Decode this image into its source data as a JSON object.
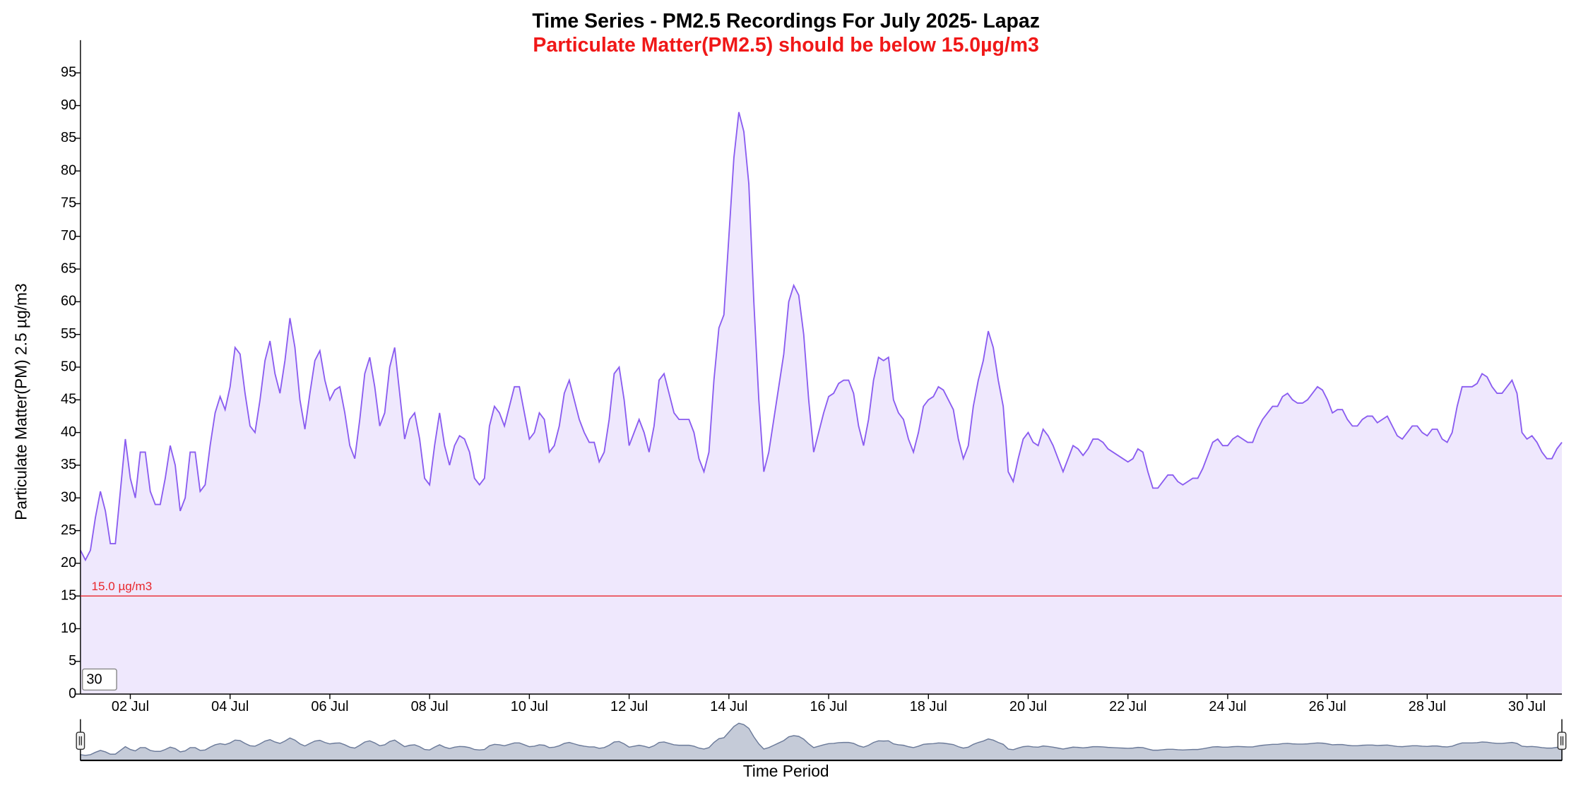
{
  "chart_data": {
    "type": "area",
    "title": "Time Series - PM2.5 Recordings For July 2025- Lapaz",
    "subtitle": "Particulate Matter(PM2.5) should be below 15.0µg/m3",
    "y_label": "Particulate Matter(PM) 2.5 µg/m3",
    "x_label": "Time Period",
    "range_input": "30",
    "color": "#8a5cf0",
    "fill_color": "#efe8fd",
    "threshold": {
      "value": 15,
      "label": "15.0 µg/m3",
      "color": "#e8262b"
    },
    "xlim": [
      1,
      30.7
    ],
    "ylim": [
      0,
      100
    ],
    "xticks": [
      {
        "value": 2,
        "label": "02 Jul"
      },
      {
        "value": 4,
        "label": "04 Jul"
      },
      {
        "value": 6,
        "label": "06 Jul"
      },
      {
        "value": 8,
        "label": "08 Jul"
      },
      {
        "value": 10,
        "label": "10 Jul"
      },
      {
        "value": 12,
        "label": "12 Jul"
      },
      {
        "value": 14,
        "label": "14 Jul"
      },
      {
        "value": 16,
        "label": "16 Jul"
      },
      {
        "value": 18,
        "label": "18 Jul"
      },
      {
        "value": 20,
        "label": "20 Jul"
      },
      {
        "value": 22,
        "label": "22 Jul"
      },
      {
        "value": 24,
        "label": "24 Jul"
      },
      {
        "value": 26,
        "label": "26 Jul"
      },
      {
        "value": 28,
        "label": "28 Jul"
      },
      {
        "value": 30,
        "label": "30 Jul"
      }
    ],
    "yticks": [
      0,
      5,
      10,
      15,
      20,
      25,
      30,
      35,
      40,
      45,
      50,
      55,
      60,
      65,
      70,
      75,
      80,
      85,
      90,
      95
    ],
    "x": [
      1,
      1.1,
      1.2,
      1.3,
      1.4,
      1.5,
      1.6,
      1.7,
      1.8,
      1.9,
      2,
      2.1,
      2.2,
      2.3,
      2.4,
      2.5,
      2.6,
      2.7,
      2.8,
      2.9,
      3,
      3.1,
      3.2,
      3.3,
      3.4,
      3.5,
      3.6,
      3.7,
      3.8,
      3.9,
      4,
      4.1,
      4.2,
      4.3,
      4.4,
      4.5,
      4.6,
      4.7,
      4.8,
      4.9,
      5,
      5.1,
      5.2,
      5.3,
      5.4,
      5.5,
      5.6,
      5.7,
      5.8,
      5.9,
      6,
      6.1,
      6.2,
      6.3,
      6.4,
      6.5,
      6.6,
      6.7,
      6.8,
      6.9,
      7,
      7.1,
      7.2,
      7.3,
      7.4,
      7.5,
      7.6,
      7.7,
      7.8,
      7.9,
      8,
      8.1,
      8.2,
      8.3,
      8.4,
      8.5,
      8.6,
      8.7,
      8.8,
      8.9,
      9,
      9.1,
      9.2,
      9.3,
      9.4,
      9.5,
      9.6,
      9.7,
      9.8,
      9.9,
      10,
      10.1,
      10.2,
      10.3,
      10.4,
      10.5,
      10.6,
      10.7,
      10.8,
      10.9,
      11,
      11.1,
      11.2,
      11.3,
      11.4,
      11.5,
      11.6,
      11.7,
      11.8,
      11.9,
      12,
      12.1,
      12.2,
      12.3,
      12.4,
      12.5,
      12.6,
      12.7,
      12.8,
      12.9,
      13,
      13.1,
      13.2,
      13.3,
      13.4,
      13.5,
      13.6,
      13.7,
      13.8,
      13.9,
      14,
      14.1,
      14.2,
      14.3,
      14.4,
      14.5,
      14.6,
      14.7,
      14.8,
      14.9,
      15,
      15.1,
      15.2,
      15.3,
      15.4,
      15.5,
      15.6,
      15.7,
      15.8,
      15.9,
      16,
      16.1,
      16.2,
      16.3,
      16.4,
      16.5,
      16.6,
      16.7,
      16.8,
      16.9,
      17,
      17.1,
      17.2,
      17.3,
      17.4,
      17.5,
      17.6,
      17.7,
      17.8,
      17.9,
      18,
      18.1,
      18.2,
      18.3,
      18.4,
      18.5,
      18.6,
      18.7,
      18.8,
      18.9,
      19,
      19.1,
      19.2,
      19.3,
      19.4,
      19.5,
      19.6,
      19.7,
      19.8,
      19.9,
      20,
      20.1,
      20.2,
      20.3,
      20.4,
      20.5,
      20.6,
      20.7,
      20.8,
      20.9,
      21,
      21.1,
      21.2,
      21.3,
      21.4,
      21.5,
      21.6,
      21.7,
      21.8,
      21.9,
      22,
      22.1,
      22.2,
      22.3,
      22.4,
      22.5,
      22.6,
      22.7,
      22.8,
      22.9,
      23,
      23.1,
      23.2,
      23.3,
      23.4,
      23.5,
      23.6,
      23.7,
      23.8,
      23.9,
      24,
      24.1,
      24.2,
      24.3,
      24.4,
      24.5,
      24.6,
      24.7,
      24.8,
      24.9,
      25,
      25.1,
      25.2,
      25.3,
      25.4,
      25.5,
      25.6,
      25.7,
      25.8,
      25.9,
      26,
      26.1,
      26.2,
      26.3,
      26.4,
      26.5,
      26.6,
      26.7,
      26.8,
      26.9,
      27,
      27.1,
      27.2,
      27.3,
      27.4,
      27.5,
      27.6,
      27.7,
      27.8,
      27.9,
      28,
      28.1,
      28.2,
      28.3,
      28.4,
      28.5,
      28.6,
      28.7,
      28.8,
      28.9,
      29,
      29.1,
      29.2,
      29.3,
      29.4,
      29.5,
      29.6,
      29.7,
      29.8,
      29.9,
      30,
      30.1,
      30.2,
      30.3,
      30.4,
      30.5,
      30.6,
      30.7
    ],
    "values": [
      22,
      20.5,
      22,
      27,
      31,
      28,
      23,
      23,
      31,
      39,
      33,
      30,
      37,
      37,
      31,
      29,
      29,
      33,
      38,
      35,
      28,
      30,
      37,
      37,
      31,
      32,
      38,
      43,
      45.5,
      43.5,
      47,
      53,
      52,
      46,
      41,
      40,
      45,
      51,
      54,
      49,
      46,
      51,
      57.5,
      53,
      45,
      40.5,
      46,
      51,
      52.5,
      48,
      45,
      46.5,
      47,
      43,
      38,
      36,
      42,
      49,
      51.5,
      47,
      41,
      43,
      50,
      53,
      46,
      39,
      42,
      43,
      39,
      33,
      32,
      38,
      43,
      38,
      35,
      38,
      39.5,
      39,
      37,
      33,
      32,
      33,
      41,
      44,
      43,
      41,
      44,
      47,
      47,
      43,
      39,
      40,
      43,
      42,
      37,
      38,
      41,
      46,
      48,
      45,
      42,
      40,
      38.5,
      38.5,
      35.5,
      37,
      42,
      49,
      50,
      45,
      38,
      40,
      42,
      40,
      37,
      41,
      48,
      49,
      46,
      43,
      42,
      42,
      42,
      40,
      36,
      34,
      37,
      48,
      56,
      58,
      70,
      82,
      89,
      86,
      78,
      60,
      45,
      34,
      37,
      42,
      47,
      52,
      60,
      62.5,
      61,
      55,
      45,
      37,
      40,
      43,
      45.5,
      46,
      47.5,
      48,
      48,
      46,
      41,
      38,
      42,
      48,
      51.5,
      51,
      51.5,
      45,
      43,
      42,
      39,
      37,
      40,
      44,
      45,
      45.5,
      47,
      46.5,
      45,
      43.5,
      39,
      36,
      38,
      44,
      48,
      51,
      55.5,
      53,
      48,
      44,
      34,
      32.5,
      36,
      39,
      40,
      38.5,
      38,
      40.5,
      39.5,
      38,
      36,
      34,
      36,
      38,
      37.5,
      36.5,
      37.5,
      39,
      39,
      38.5,
      37.5,
      37,
      36.5,
      36,
      35.5,
      36,
      37.5,
      37,
      34,
      31.5,
      31.5,
      32.5,
      33.5,
      33.5,
      32.5,
      32,
      32.5,
      33,
      33,
      34.5,
      36.5,
      38.5,
      39,
      38,
      38,
      39,
      39.5,
      39,
      38.5,
      38.5,
      40.5,
      42,
      43,
      44,
      44,
      45.5,
      46,
      45,
      44.5,
      44.5,
      45,
      46,
      47,
      46.5,
      45,
      43,
      43.5,
      43.5,
      42,
      41,
      41,
      42,
      42.5,
      42.5,
      41.5,
      42,
      42.5,
      41,
      39.5,
      39,
      40,
      41,
      41,
      40,
      39.5,
      40.5,
      40.5,
      39,
      38.5,
      40,
      44,
      47,
      47,
      47,
      47.5,
      49,
      48.5,
      47,
      46,
      46,
      47,
      48,
      46,
      40,
      39,
      39.5,
      38.5,
      37,
      36,
      36,
      37.5,
      38.5
    ]
  }
}
